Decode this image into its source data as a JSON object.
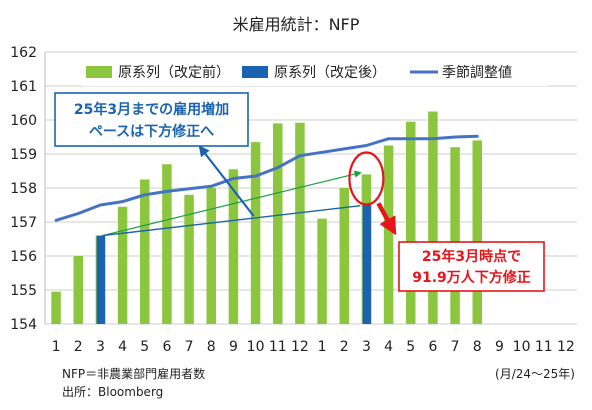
{
  "chart_data": {
    "type": "bar",
    "title": "米雇用統計：NFP",
    "y_axis": {
      "min": 154,
      "max": 162,
      "step": 1
    },
    "x_tick_labels": [
      "1",
      "2",
      "3",
      "4",
      "5",
      "6",
      "7",
      "8",
      "9",
      "10",
      "11",
      "12",
      "1",
      "2",
      "3",
      "4",
      "5",
      "6",
      "7",
      "8",
      "9",
      "10",
      "11",
      "12"
    ],
    "x_unit_label": "(月/24～25年)",
    "series": [
      {
        "name": "原系列（改定前）",
        "type": "bar",
        "color": "#8cc63e",
        "values": [
          154.95,
          156.0,
          156.6,
          157.45,
          158.25,
          158.7,
          157.8,
          158.0,
          158.55,
          159.35,
          159.9,
          159.92,
          157.1,
          158.0,
          158.4,
          159.25,
          159.95,
          160.25,
          159.2,
          159.4,
          null,
          null,
          null,
          null
        ]
      },
      {
        "name": "原系列（改定後）",
        "type": "bar",
        "color": "#1b63b0",
        "values": [
          null,
          null,
          156.6,
          null,
          null,
          null,
          null,
          null,
          null,
          null,
          null,
          null,
          null,
          null,
          157.5,
          null,
          null,
          null,
          null,
          null,
          null,
          null,
          null,
          null
        ]
      },
      {
        "name": "季節調整値",
        "type": "line",
        "color": "#4472c4",
        "values": [
          157.05,
          157.25,
          157.5,
          157.6,
          157.8,
          157.9,
          157.98,
          158.05,
          158.28,
          158.35,
          158.6,
          158.95,
          159.05,
          159.15,
          159.25,
          159.45,
          159.45,
          159.45,
          159.5,
          159.52,
          null,
          null,
          null,
          null
        ]
      }
    ],
    "annotations": [
      {
        "text": [
          "25年3月までの雇用増加",
          "ペースは下方修正へ"
        ],
        "color": "#1b63b0"
      },
      {
        "text": [
          "25年3月時点で",
          "91.9万人下方修正"
        ],
        "color": "#e8141a"
      }
    ],
    "grid": true,
    "legend_position": "top"
  },
  "footnotes": {
    "definition": "NFP＝非農業部門雇用者数",
    "source": "出所：Bloomberg"
  }
}
